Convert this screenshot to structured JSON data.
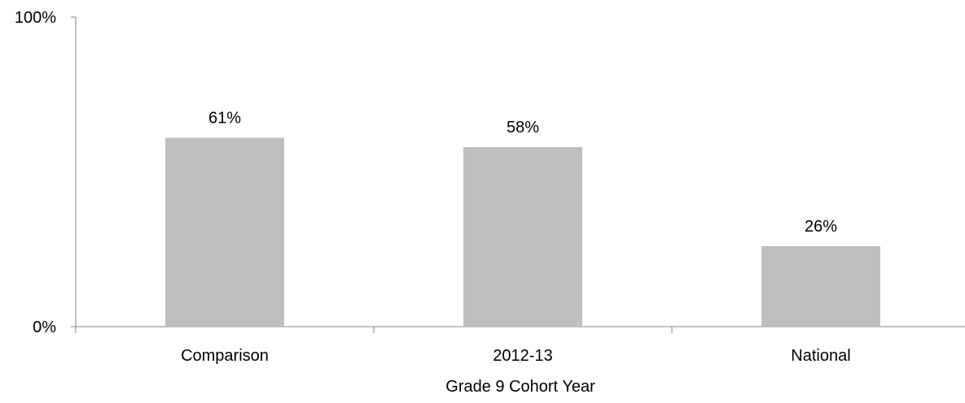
{
  "chart_data": {
    "type": "bar",
    "title": "",
    "xlabel": "Grade 9 Cohort Year",
    "ylabel": "",
    "categories": [
      "Comparison",
      "2012-13",
      "National"
    ],
    "values": [
      61,
      58,
      26
    ],
    "value_labels": [
      "61%",
      "58%",
      "26%"
    ],
    "ylim": [
      0,
      100
    ],
    "y_ticks": [
      {
        "value": 0,
        "label": "0%"
      },
      {
        "value": 100,
        "label": "100%"
      }
    ],
    "grid": false,
    "legend": "none",
    "colors": {
      "bar": "#bfbfbf",
      "axis": "#868686"
    }
  }
}
